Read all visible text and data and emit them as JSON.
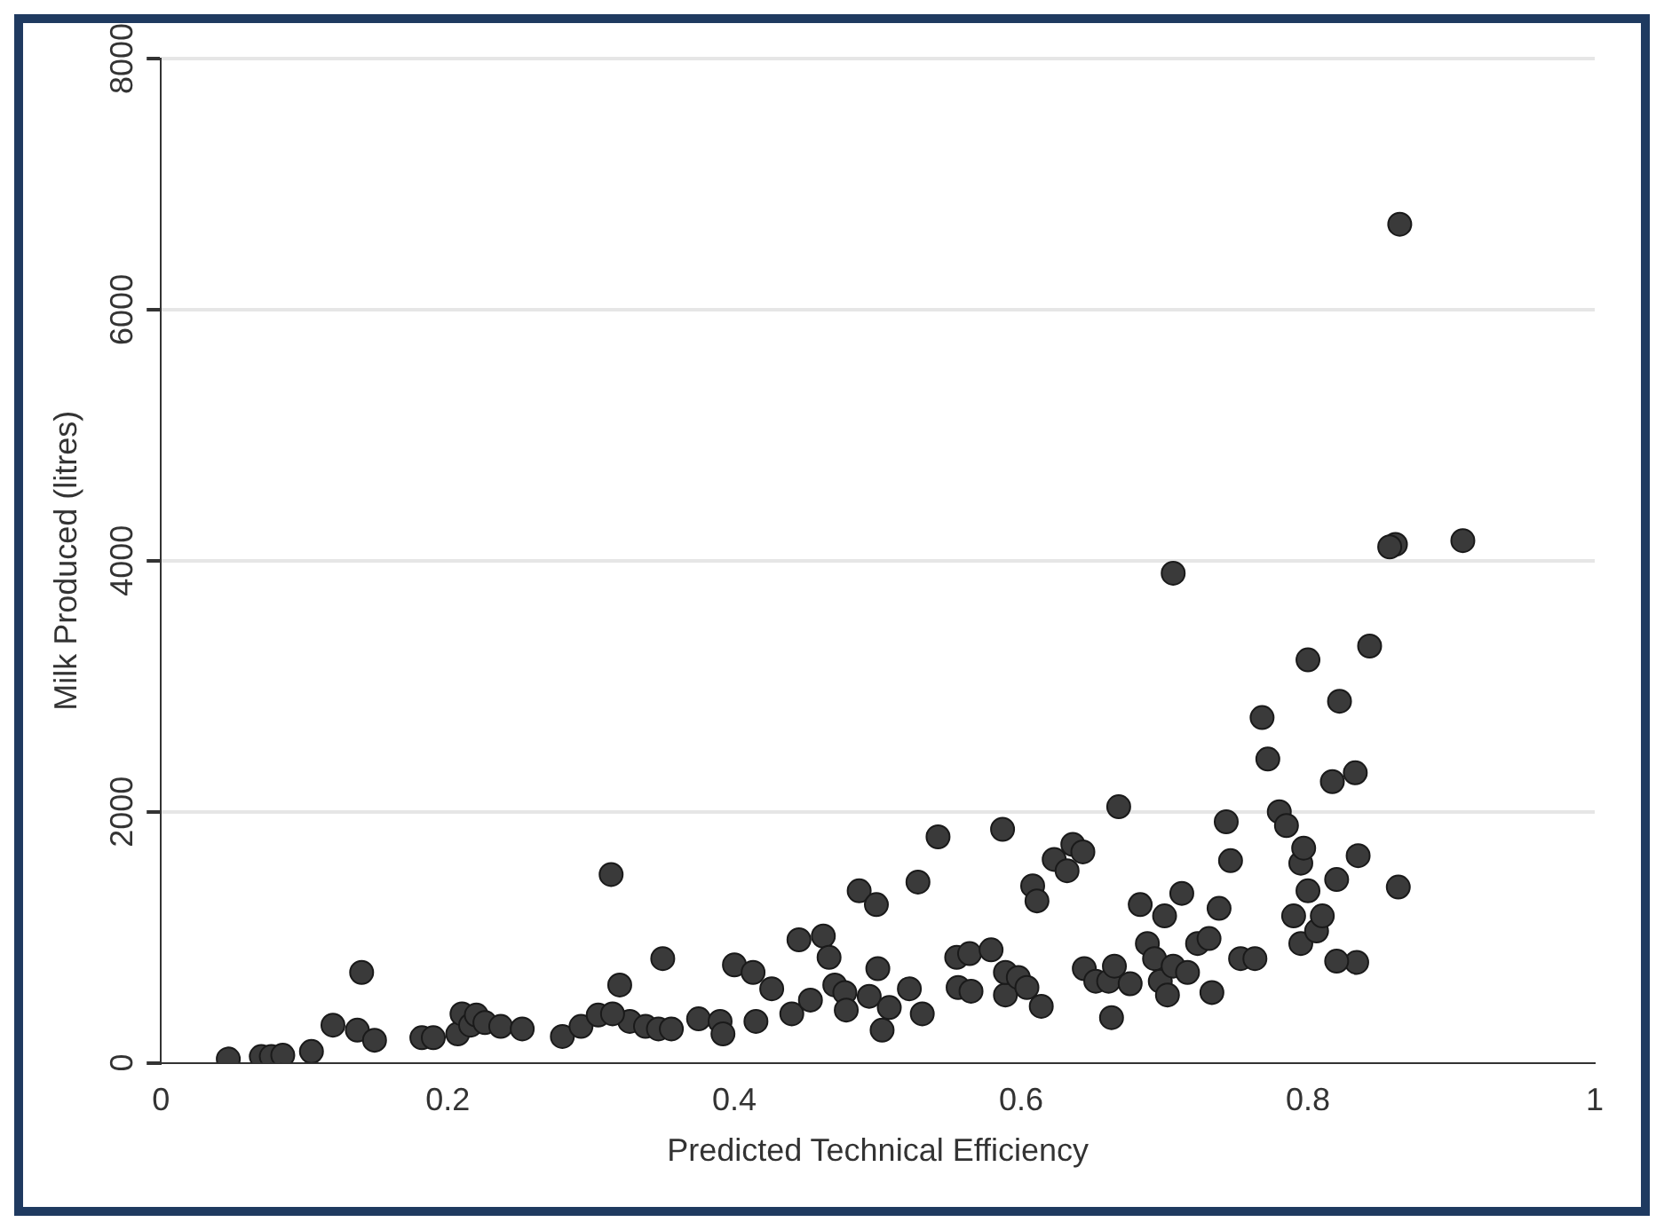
{
  "chart_data": {
    "type": "scatter",
    "xlabel": "Predicted Technical Efficiency",
    "ylabel": "Milk Produced (litres)",
    "xlim": [
      0,
      1
    ],
    "xticks": [
      0,
      0.2,
      0.4,
      0.6,
      0.8,
      1
    ],
    "ylim": [
      0,
      8000
    ],
    "yticks": [
      0,
      2000,
      4000,
      6000,
      8000
    ],
    "grid": "y",
    "marker": "circle",
    "legend": false,
    "series": [
      {
        "color": "#3a3a3a",
        "x": [
          0.047,
          0.07,
          0.077,
          0.085,
          0.105,
          0.12,
          0.137,
          0.14,
          0.149,
          0.182,
          0.19,
          0.207,
          0.21,
          0.216,
          0.22,
          0.226,
          0.237,
          0.252,
          0.28,
          0.293,
          0.305,
          0.314,
          0.32,
          0.327,
          0.315,
          0.338,
          0.347,
          0.35,
          0.356,
          0.375,
          0.39,
          0.392,
          0.4,
          0.413,
          0.415,
          0.426,
          0.44,
          0.445,
          0.453,
          0.462,
          0.466,
          0.47,
          0.477,
          0.478,
          0.487,
          0.494,
          0.499,
          0.5,
          0.503,
          0.508,
          0.522,
          0.528,
          0.531,
          0.542,
          0.555,
          0.556,
          0.564,
          0.565,
          0.579,
          0.587,
          0.589,
          0.589,
          0.598,
          0.604,
          0.608,
          0.611,
          0.614,
          0.623,
          0.632,
          0.636,
          0.643,
          0.644,
          0.652,
          0.661,
          0.668,
          0.665,
          0.676,
          0.683,
          0.688,
          0.693,
          0.697,
          0.702,
          0.7,
          0.706,
          0.716,
          0.712,
          0.706,
          0.723,
          0.733,
          0.731,
          0.746,
          0.738,
          0.743,
          0.753,
          0.763,
          0.768,
          0.772,
          0.78,
          0.785,
          0.795,
          0.797,
          0.79,
          0.795,
          0.8,
          0.806,
          0.81,
          0.817,
          0.834,
          0.82,
          0.835,
          0.8,
          0.822,
          0.833,
          0.843,
          0.861,
          0.857,
          0.908,
          0.864,
          0.863,
          0.82,
          0.663
        ],
        "values": [
          30,
          50,
          50,
          60,
          90,
          300,
          260,
          720,
          180,
          200,
          200,
          230,
          390,
          300,
          380,
          320,
          290,
          270,
          210,
          290,
          380,
          1500,
          620,
          330,
          390,
          290,
          270,
          830,
          270,
          350,
          330,
          230,
          780,
          720,
          330,
          590,
          390,
          980,
          500,
          1010,
          840,
          620,
          560,
          420,
          1370,
          530,
          1260,
          750,
          260,
          440,
          590,
          1440,
          390,
          1800,
          840,
          600,
          870,
          570,
          900,
          1860,
          540,
          720,
          680,
          600,
          1410,
          1290,
          450,
          1620,
          1530,
          1740,
          1680,
          750,
          650,
          650,
          2040,
          770,
          630,
          1260,
          950,
          830,
          650,
          540,
          1170,
          770,
          720,
          1350,
          3900,
          950,
          560,
          990,
          1610,
          1230,
          1920,
          830,
          830,
          2750,
          2420,
          2000,
          1890,
          1590,
          1710,
          1170,
          950,
          1370,
          1050,
          1170,
          2240,
          800,
          1460,
          1650,
          3210,
          2880,
          2310,
          3320,
          4130,
          4110,
          4160,
          6680,
          1400,
          810,
          360
        ]
      }
    ]
  }
}
